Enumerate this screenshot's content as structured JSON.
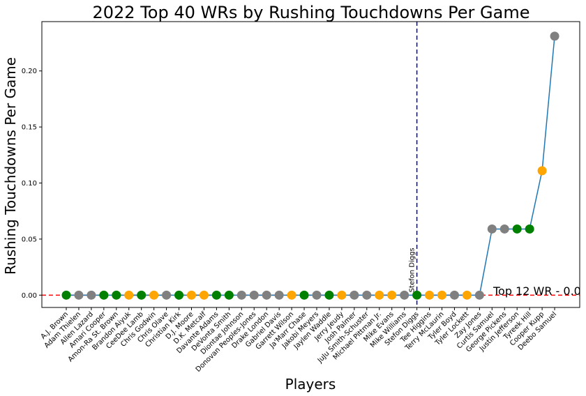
{
  "chart_data": {
    "type": "scatter",
    "title": "2022 Top 40 WRs by Rushing Touchdowns Per Game",
    "xlabel": "Players",
    "ylabel": "Rushing Touchdowns Per Game",
    "ylim": [
      -0.011,
      0.244
    ],
    "yticks": [
      0.0,
      0.05,
      0.1,
      0.15,
      0.2
    ],
    "ytick_labels": [
      "0.00",
      "0.05",
      "0.10",
      "0.15",
      "0.20"
    ],
    "grid": false,
    "colors": {
      "line": "#1f77b4",
      "green": "#008000",
      "orange": "#ffa500",
      "gray": "#808080",
      "threshold_line": "#ff0000",
      "highlight_line": "#0000cd"
    },
    "players": [
      "A.J. Brown",
      "Adam Thielen",
      "Allen Lazard",
      "Amari Cooper",
      "Amon-Ra St. Brown",
      "Brandon Aiyuk",
      "CeeDee Lamb",
      "Chris Godwin",
      "Chris Olave",
      "Christian Kirk",
      "D.J. Moore",
      "D.K. Metcalf",
      "Davante Adams",
      "DeVonta Smith",
      "Diontae Johnson",
      "Donovan Peoples-Jones",
      "Drake London",
      "Gabriel Davis",
      "Garrett Wilson",
      "Ja'Marr Chase",
      "Jakobi Meyers",
      "Jaylen Waddle",
      "Jerry Jeudy",
      "Josh Palmer",
      "JuJu Smith-Schuster",
      "Michael Pittman Jr.",
      "Mike Evans",
      "Mike Williams",
      "Stefon Diggs",
      "Tee Higgins",
      "Terry McLaurin",
      "Tyler Boyd",
      "Tyler Lockett",
      "Zay Jones",
      "Curtis Samuel",
      "George Pickens",
      "Justin Jefferson",
      "Tyreek Hill",
      "Cooper Kupp",
      "Deebo Samuel"
    ],
    "values": [
      0.0,
      0.0,
      0.0,
      0.0,
      0.0,
      0.0,
      0.0,
      0.0,
      0.0,
      0.0,
      0.0,
      0.0,
      0.0,
      0.0,
      0.0,
      0.0,
      0.0,
      0.0,
      0.0,
      0.0,
      0.0,
      0.0,
      0.0,
      0.0,
      0.0,
      0.0,
      0.0,
      0.0,
      0.0,
      0.0,
      0.0,
      0.0,
      0.0,
      0.0,
      0.059,
      0.059,
      0.059,
      0.059,
      0.111,
      0.231
    ],
    "point_colors": [
      "green",
      "gray",
      "gray",
      "green",
      "green",
      "orange",
      "green",
      "orange",
      "gray",
      "green",
      "orange",
      "orange",
      "green",
      "green",
      "gray",
      "gray",
      "gray",
      "gray",
      "orange",
      "green",
      "gray",
      "green",
      "orange",
      "gray",
      "gray",
      "orange",
      "orange",
      "gray",
      "green",
      "orange",
      "orange",
      "gray",
      "orange",
      "gray",
      "gray",
      "gray",
      "green",
      "green",
      "orange",
      "gray"
    ],
    "threshold": {
      "value": 0.0,
      "label": "Top 12 WR - 0.0"
    },
    "highlight": {
      "index": 28,
      "label": "Stefon Diggs"
    }
  }
}
